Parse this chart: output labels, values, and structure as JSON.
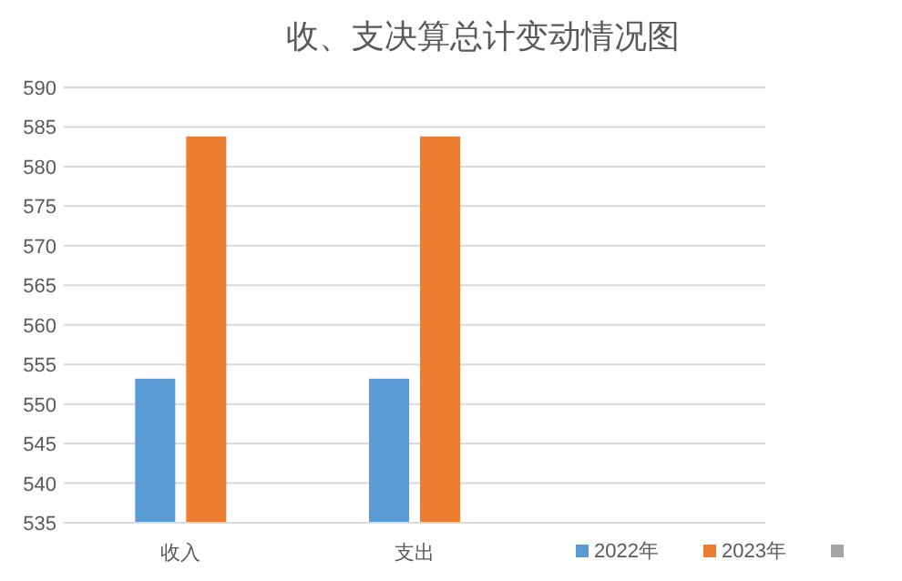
{
  "chart_data": {
    "type": "bar",
    "title": "收、支决算总计变动情况图",
    "categories": [
      "收入",
      "支出",
      null
    ],
    "series": [
      {
        "name": "2022年",
        "color": "#5b9bd5",
        "values": [
          553.2,
          553.2,
          null
        ]
      },
      {
        "name": "2023年",
        "color": "#ed7d31",
        "values": [
          583.8,
          583.8,
          null
        ]
      }
    ],
    "ylim": [
      535,
      590
    ],
    "yticks": [
      535,
      540,
      545,
      550,
      555,
      560,
      565,
      570,
      575,
      580,
      585,
      590
    ],
    "grid": "y",
    "legend": "bottom right"
  }
}
